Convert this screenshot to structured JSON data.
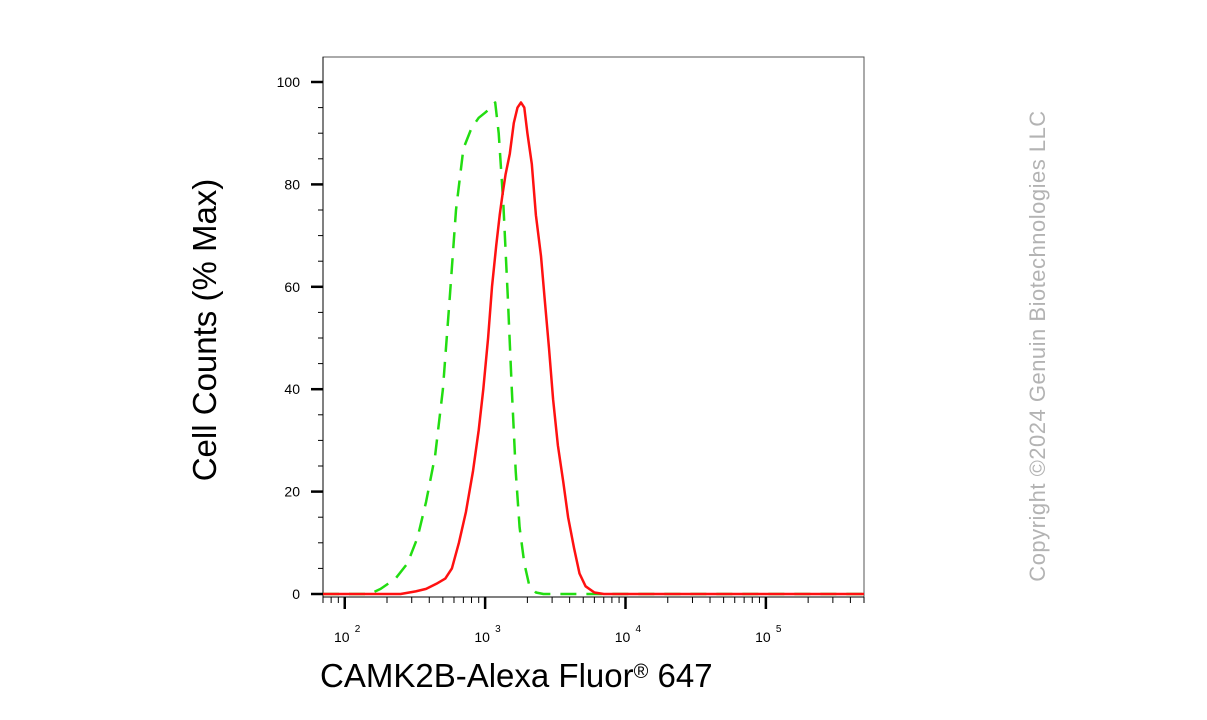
{
  "chart_data": {
    "type": "line",
    "title": "",
    "xlabel": "CAMK2B-Alexa Fluor",
    "xlabel_mark": "®",
    "xlabel_tail": " 647",
    "ylabel": "Cell Counts (% Max)",
    "xscale": "log",
    "xlim": [
      70,
      500000
    ],
    "ylim": [
      0,
      100
    ],
    "grid": false,
    "x_ticks": [
      {
        "base": "10",
        "exp": "2",
        "value": 100
      },
      {
        "base": "10",
        "exp": "3",
        "value": 1000
      },
      {
        "base": "10",
        "exp": "4",
        "value": 10000
      },
      {
        "base": "10",
        "exp": "5",
        "value": 100000
      }
    ],
    "y_ticks": [
      {
        "label": "0",
        "value": 0
      },
      {
        "label": "20",
        "value": 20
      },
      {
        "label": "40",
        "value": 40
      },
      {
        "label": "60",
        "value": 60
      },
      {
        "label": "80",
        "value": 80
      },
      {
        "label": "100",
        "value": 100
      }
    ],
    "series": [
      {
        "color": "#22dd11",
        "style": "dashed",
        "points": [
          [
            70,
            0
          ],
          [
            150,
            0
          ],
          [
            180,
            1
          ],
          [
            230,
            3
          ],
          [
            280,
            6
          ],
          [
            330,
            11
          ],
          [
            380,
            18
          ],
          [
            440,
            27
          ],
          [
            500,
            40
          ],
          [
            560,
            58
          ],
          [
            620,
            75
          ],
          [
            700,
            87
          ],
          [
            800,
            91
          ],
          [
            900,
            93
          ],
          [
            1000,
            94
          ],
          [
            1100,
            95
          ],
          [
            1180,
            96
          ],
          [
            1250,
            90
          ],
          [
            1350,
            76
          ],
          [
            1450,
            58
          ],
          [
            1550,
            40
          ],
          [
            1650,
            24
          ],
          [
            1760,
            13
          ],
          [
            1900,
            6
          ],
          [
            2050,
            2
          ],
          [
            2300,
            0.3
          ],
          [
            2600,
            0
          ],
          [
            500000,
            0
          ]
        ]
      },
      {
        "color": "#ff1111",
        "style": "solid",
        "points": [
          [
            70,
            0
          ],
          [
            250,
            0
          ],
          [
            320,
            0.5
          ],
          [
            380,
            1
          ],
          [
            450,
            2
          ],
          [
            520,
            3
          ],
          [
            580,
            5
          ],
          [
            650,
            10
          ],
          [
            730,
            16
          ],
          [
            820,
            24
          ],
          [
            900,
            32
          ],
          [
            970,
            40
          ],
          [
            1050,
            50
          ],
          [
            1120,
            60
          ],
          [
            1200,
            68
          ],
          [
            1270,
            74
          ],
          [
            1330,
            78
          ],
          [
            1400,
            82
          ],
          [
            1500,
            86
          ],
          [
            1600,
            92
          ],
          [
            1700,
            95
          ],
          [
            1800,
            96
          ],
          [
            1900,
            95
          ],
          [
            2000,
            90
          ],
          [
            2150,
            84
          ],
          [
            2300,
            74
          ],
          [
            2500,
            66
          ],
          [
            2650,
            58
          ],
          [
            2850,
            48
          ],
          [
            3050,
            38
          ],
          [
            3300,
            29
          ],
          [
            3600,
            22
          ],
          [
            3900,
            15
          ],
          [
            4300,
            9
          ],
          [
            4700,
            4
          ],
          [
            5200,
            1.5
          ],
          [
            6000,
            0.3
          ],
          [
            7000,
            0
          ],
          [
            500000,
            0
          ]
        ]
      }
    ]
  },
  "watermark": {
    "text": "Copyright ©2024 Genuin Biotechnologies LLC"
  }
}
